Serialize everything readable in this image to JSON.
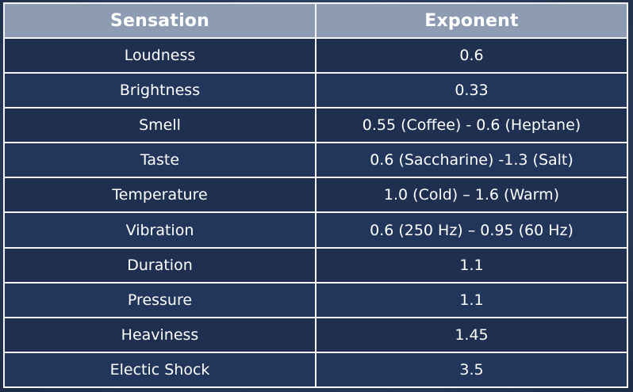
{
  "table": {
    "headers": [
      "Sensation",
      "Exponent"
    ],
    "rows": [
      [
        "Loudness",
        "0.6"
      ],
      [
        "Brightness",
        "0.33"
      ],
      [
        "Smell",
        "0.55 (Coffee) - 0.6 (Heptane)"
      ],
      [
        "Taste",
        "0.6 (Saccharine) -1.3 (Salt)"
      ],
      [
        "Temperature",
        "1.0 (Cold) – 1.6 (Warm)"
      ],
      [
        "Vibration",
        "0.6 (250 Hz) – 0.95 (60 Hz)"
      ],
      [
        "Duration",
        "1.1"
      ],
      [
        "Pressure",
        "1.1"
      ],
      [
        "Heaviness",
        "1.45"
      ],
      [
        "Electic Shock",
        "3.5"
      ]
    ]
  }
}
